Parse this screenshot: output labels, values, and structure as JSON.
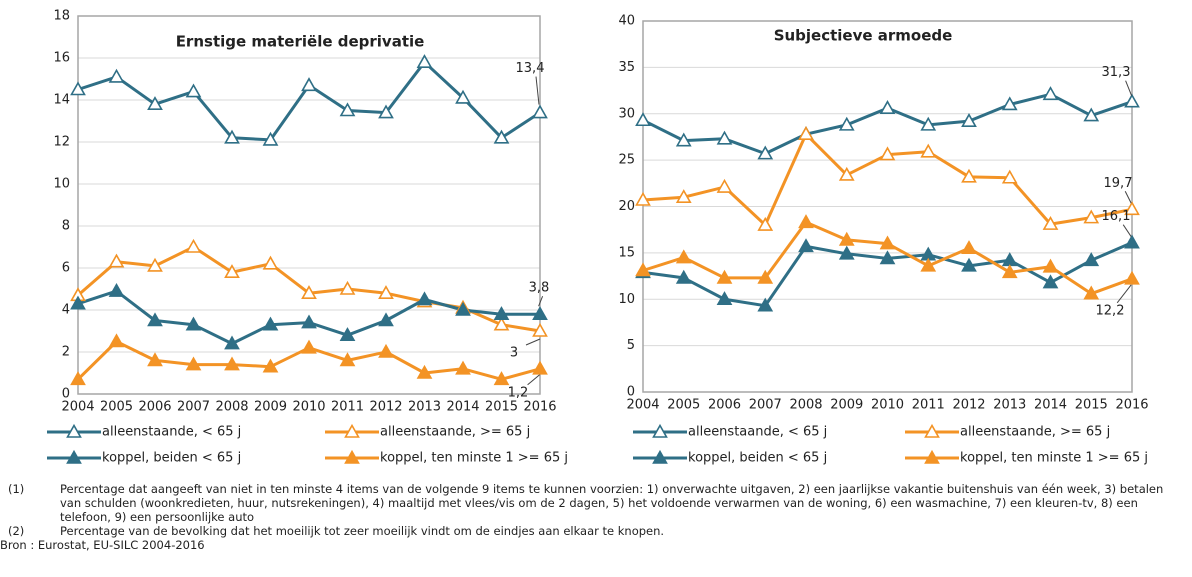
{
  "chart_data": [
    {
      "type": "line",
      "title": "Ernstige materiële deprivatie",
      "categories": [
        "2004",
        "2005",
        "2006",
        "2007",
        "2008",
        "2009",
        "2010",
        "2011",
        "2012",
        "2013",
        "2014",
        "2015",
        "2016"
      ],
      "ylim": [
        0,
        18
      ],
      "yticks": [
        0,
        2,
        4,
        6,
        8,
        10,
        12,
        14,
        16,
        18
      ],
      "grid": true,
      "series": [
        {
          "name": "alleenstaande, < 65 j",
          "color": "#2f6f86",
          "marker": "triangle-open",
          "values": [
            14.5,
            15.1,
            13.8,
            14.4,
            12.2,
            12.1,
            14.7,
            13.5,
            13.4,
            15.8,
            14.1,
            12.2,
            13.4
          ],
          "value_labels": [
            null,
            null,
            null,
            null,
            null,
            null,
            null,
            null,
            null,
            null,
            null,
            null,
            "13,4"
          ]
        },
        {
          "name": "alleenstaande, >= 65 j",
          "color": "#f39325",
          "marker": "triangle-open",
          "values": [
            4.7,
            6.3,
            6.1,
            7.0,
            5.8,
            6.2,
            4.8,
            5.0,
            4.8,
            4.4,
            4.1,
            3.3,
            3.0
          ],
          "value_labels": [
            null,
            null,
            null,
            null,
            null,
            null,
            null,
            null,
            null,
            null,
            null,
            null,
            "3"
          ]
        },
        {
          "name": "koppel, beiden < 65 j",
          "color": "#2f6f86",
          "marker": "triangle-filled",
          "values": [
            4.3,
            4.9,
            3.5,
            3.3,
            2.4,
            3.3,
            3.4,
            2.8,
            3.5,
            4.5,
            4.0,
            3.8,
            3.8
          ],
          "value_labels": [
            null,
            null,
            null,
            null,
            null,
            null,
            null,
            null,
            null,
            null,
            null,
            null,
            "3,8"
          ]
        },
        {
          "name": "koppel, ten minste 1 >= 65 j",
          "color": "#f39325",
          "marker": "triangle-filled",
          "values": [
            0.7,
            2.5,
            1.6,
            1.4,
            1.4,
            1.3,
            2.2,
            1.6,
            2.0,
            1.0,
            1.2,
            0.7,
            1.2
          ],
          "value_labels": [
            null,
            null,
            null,
            null,
            null,
            null,
            null,
            null,
            null,
            null,
            null,
            null,
            "1,2"
          ]
        }
      ]
    },
    {
      "type": "line",
      "title": "Subjectieve armoede",
      "categories": [
        "2004",
        "2005",
        "2006",
        "2007",
        "2008",
        "2009",
        "2010",
        "2011",
        "2012",
        "2013",
        "2014",
        "2015",
        "2016"
      ],
      "ylim": [
        0,
        40
      ],
      "yticks": [
        0,
        5,
        10,
        15,
        20,
        25,
        30,
        35,
        40
      ],
      "grid": true,
      "series": [
        {
          "name": "alleenstaande, < 65 j",
          "color": "#2f6f86",
          "marker": "triangle-open",
          "values": [
            29.3,
            27.1,
            27.3,
            25.7,
            27.8,
            28.8,
            30.6,
            28.8,
            29.2,
            31.0,
            32.1,
            29.8,
            31.3
          ],
          "value_labels": [
            null,
            null,
            null,
            null,
            null,
            null,
            null,
            null,
            null,
            null,
            null,
            null,
            "31,3"
          ]
        },
        {
          "name": "alleenstaande, >= 65 j",
          "color": "#f39325",
          "marker": "triangle-open",
          "values": [
            20.7,
            21.0,
            22.1,
            18.0,
            27.8,
            23.4,
            25.6,
            25.9,
            23.2,
            23.1,
            18.1,
            18.8,
            19.7
          ],
          "value_labels": [
            null,
            null,
            null,
            null,
            null,
            null,
            null,
            null,
            null,
            null,
            null,
            null,
            "19,7"
          ]
        },
        {
          "name": "koppel, beiden < 65 j",
          "color": "#2f6f86",
          "marker": "triangle-filled",
          "values": [
            12.9,
            12.3,
            10.0,
            9.3,
            15.7,
            14.9,
            14.4,
            14.8,
            13.6,
            14.2,
            11.8,
            14.2,
            16.1
          ],
          "value_labels": [
            null,
            null,
            null,
            null,
            null,
            null,
            null,
            null,
            null,
            null,
            null,
            null,
            "16,1"
          ]
        },
        {
          "name": "koppel, ten minste 1 >= 65 j",
          "color": "#f39325",
          "marker": "triangle-filled",
          "values": [
            13.1,
            14.5,
            12.3,
            12.3,
            18.3,
            16.4,
            16.0,
            13.6,
            15.5,
            12.9,
            13.5,
            10.6,
            12.2
          ],
          "value_labels": [
            null,
            null,
            null,
            null,
            null,
            null,
            null,
            null,
            null,
            null,
            null,
            null,
            "12,2"
          ]
        }
      ]
    }
  ],
  "footnotes": [
    {
      "marker": "(1)",
      "text": "Percentage dat aangeeft van niet in ten minste 4 items van de volgende 9 items te kunnen voorzien: 1) onverwachte uitgaven, 2) een jaarlijkse vakantie buitenshuis van één week, 3) betalen van schulden (woonkredieten, huur, nutsrekeningen), 4) maaltijd met vlees/vis om de 2 dagen, 5) het voldoende verwarmen van de woning, 6) een wasmachine, 7) een kleuren-tv, 8) een telefoon, 9) een persoonlijke auto"
    },
    {
      "marker": "(2)",
      "text": "Percentage van de bevolking dat het moeilijk tot zeer moeilijk vindt om de eindjes aan elkaar te knopen."
    }
  ],
  "source": "Bron : Eurostat, EU-SILC 2004-2016"
}
